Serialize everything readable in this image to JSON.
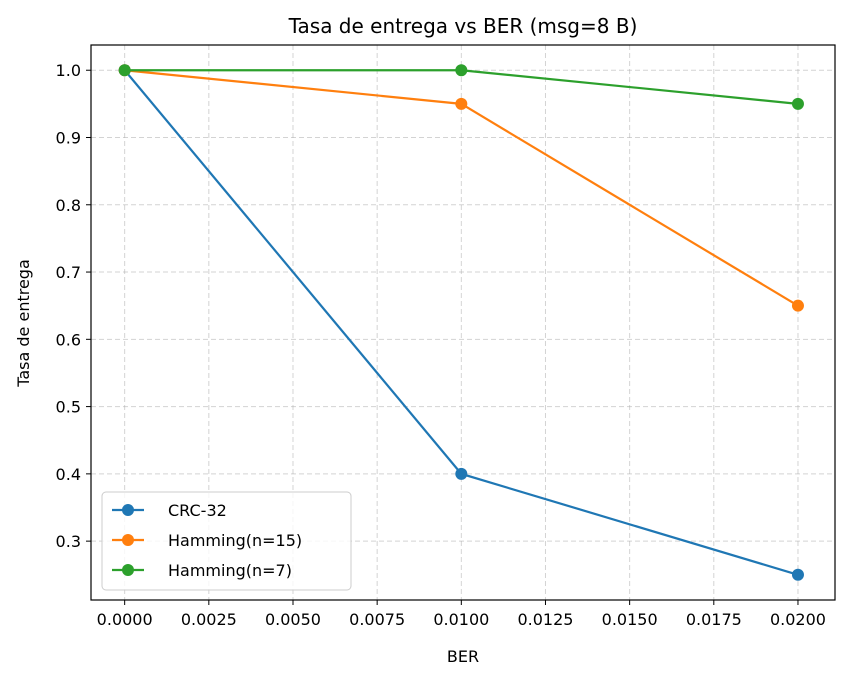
{
  "chart_data": {
    "type": "line",
    "title": "Tasa de entrega vs BER (msg=8 B)",
    "xlabel": "BER",
    "ylabel": "Tasa de entrega",
    "xlim": [
      -0.001,
      0.0211
    ],
    "ylim": [
      0.2125,
      1.0375
    ],
    "xticks": [
      0.0,
      0.0025,
      0.005,
      0.0075,
      0.01,
      0.0125,
      0.015,
      0.0175,
      0.02
    ],
    "xtick_labels": [
      "0.0000",
      "0.0025",
      "0.0050",
      "0.0075",
      "0.0100",
      "0.0125",
      "0.0150",
      "0.0175",
      "0.0200"
    ],
    "yticks": [
      0.3,
      0.4,
      0.5,
      0.6,
      0.7,
      0.8,
      0.9,
      1.0
    ],
    "ytick_labels": [
      "0.3",
      "0.4",
      "0.5",
      "0.6",
      "0.7",
      "0.8",
      "0.9",
      "1.0"
    ],
    "grid": true,
    "legend_position": "lower-left",
    "x": [
      0.0,
      0.01,
      0.02
    ],
    "series": [
      {
        "name": "CRC-32",
        "color": "#1f77b4",
        "values": [
          1.0,
          0.4,
          0.25
        ]
      },
      {
        "name": "Hamming(n=15)",
        "color": "#ff7f0e",
        "values": [
          1.0,
          0.95,
          0.65
        ]
      },
      {
        "name": "Hamming(n=7)",
        "color": "#2ca02c",
        "values": [
          1.0,
          1.0,
          0.95
        ]
      }
    ]
  }
}
